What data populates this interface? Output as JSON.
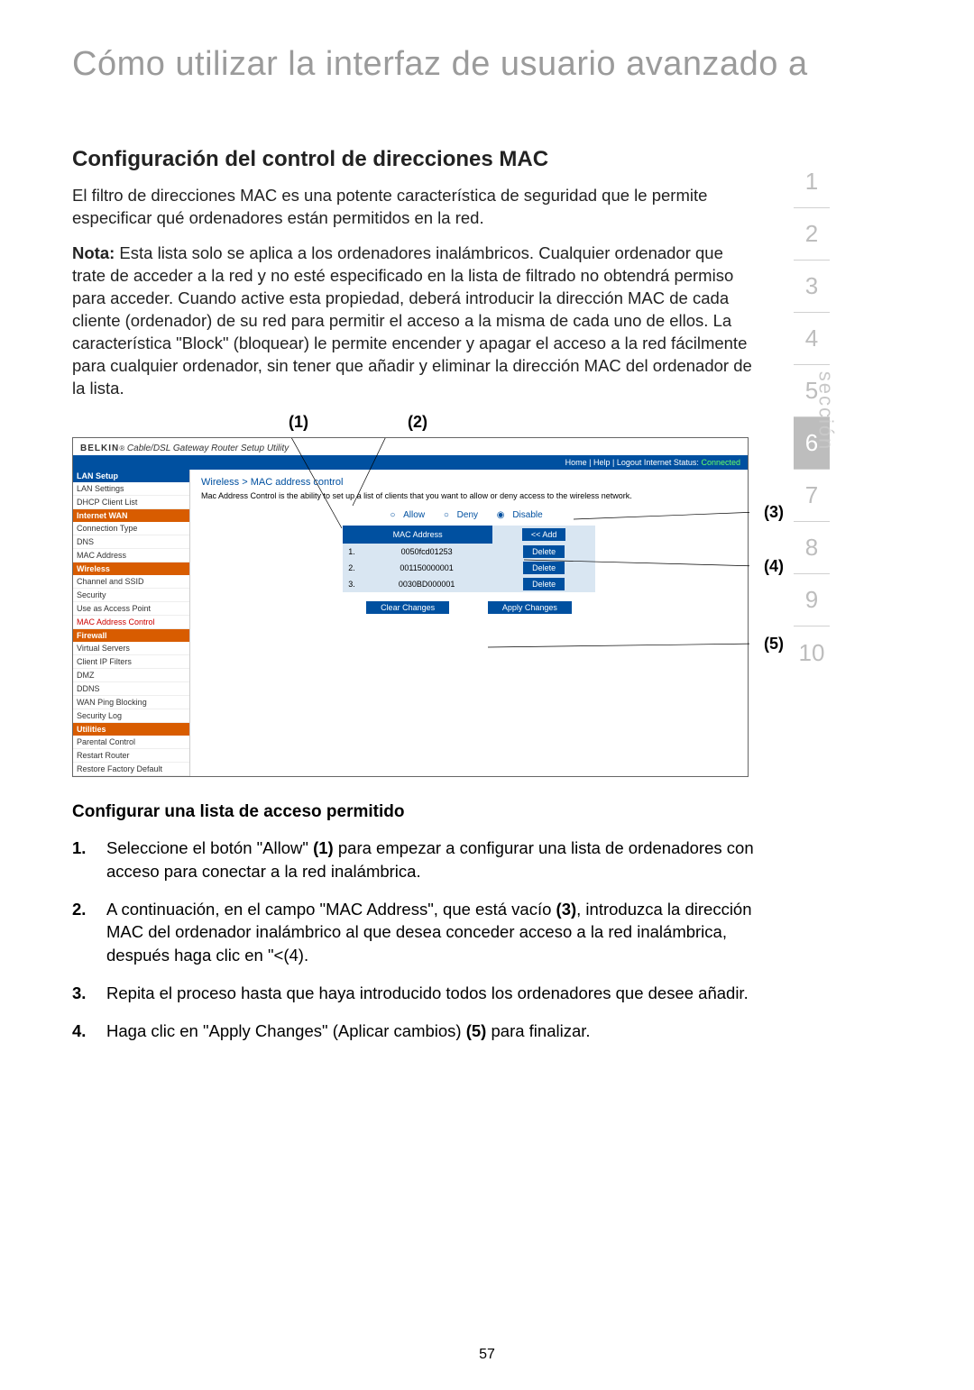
{
  "page_title": "Cómo utilizar la interfaz de usuario avanzado a",
  "h2": "Configuración del control de direcciones MAC",
  "p1": "El filtro de direcciones MAC es una potente característica de seguridad que le permite especificar qué ordenadores están permitidos en la red.",
  "p2_bold": "Nota:",
  "p2": " Esta lista solo se aplica a los ordenadores inalámbricos. Cualquier ordenador que trate de acceder a la red y no esté especificado en la lista de filtrado no obtendrá permiso para acceder. Cuando active esta propiedad, deberá introducir la dirección MAC de cada cliente (ordenador) de su red para permitir el acceso a la misma de cada uno de ellos. La característica \"Block\" (bloquear) le permite encender y apagar el acceso a la red fácilmente para cualquier ordenador, sin tener que añadir y eliminar la dirección MAC del ordenador de la lista.",
  "callout_top": [
    "(1)",
    "(2)"
  ],
  "callout_right": [
    "(3)",
    "(4)",
    "(5)"
  ],
  "router": {
    "brand": "BELKIN",
    "subtitle": "Cable/DSL Gateway Router Setup Utility",
    "topbar_links": "Home | Help | Logout   Internet Status:",
    "topbar_status": "Connected",
    "nav": [
      {
        "type": "head",
        "label": "LAN Setup"
      },
      {
        "type": "item",
        "label": "LAN Settings"
      },
      {
        "type": "item",
        "label": "DHCP Client List"
      },
      {
        "type": "head-orange",
        "label": "Internet WAN"
      },
      {
        "type": "item",
        "label": "Connection Type"
      },
      {
        "type": "item",
        "label": "DNS"
      },
      {
        "type": "item",
        "label": "MAC Address"
      },
      {
        "type": "head-orange",
        "label": "Wireless"
      },
      {
        "type": "item",
        "label": "Channel and SSID"
      },
      {
        "type": "item",
        "label": "Security"
      },
      {
        "type": "item",
        "label": "Use as Access Point"
      },
      {
        "type": "item-red",
        "label": "MAC Address Control"
      },
      {
        "type": "head-orange",
        "label": "Firewall"
      },
      {
        "type": "item",
        "label": "Virtual Servers"
      },
      {
        "type": "item",
        "label": "Client IP Filters"
      },
      {
        "type": "item",
        "label": "DMZ"
      },
      {
        "type": "item",
        "label": "DDNS"
      },
      {
        "type": "item",
        "label": "WAN Ping Blocking"
      },
      {
        "type": "item",
        "label": "Security Log"
      },
      {
        "type": "head-orange",
        "label": "Utilities"
      },
      {
        "type": "item",
        "label": "Parental Control"
      },
      {
        "type": "item",
        "label": "Restart Router"
      },
      {
        "type": "item",
        "label": "Restore Factory Default"
      }
    ],
    "breadcrumb": "Wireless > MAC address control",
    "desc": "Mac Address Control is the ability to set up a list of clients that you want to allow or deny access to the wireless network.",
    "radio_allow": "Allow",
    "radio_deny": "Deny",
    "radio_disable": "Disable",
    "table_header": "MAC Address",
    "add_btn": "<< Add",
    "rows": [
      {
        "idx": "1.",
        "mac": "0050fcd01253",
        "btn": "Delete"
      },
      {
        "idx": "2.",
        "mac": "001150000001",
        "btn": "Delete"
      },
      {
        "idx": "3.",
        "mac": "0030BD000001",
        "btn": "Delete"
      }
    ],
    "clear_btn": "Clear Changes",
    "apply_btn": "Apply Changes"
  },
  "h3": "Configurar una lista de acceso permitido",
  "steps": [
    "Seleccione el botón \"Allow\" (1) para empezar a configurar una lista de ordenadores con acceso para conectar a la red inalámbrica.",
    "A continuación, en el campo \"MAC Address\", que está vacío (3), introduzca la dirección MAC del ordenador inalámbrico al que desea conceder acceso a la red inalámbrica, después haga clic en \"<<Add\" (4).",
    "Repita el proceso hasta que haya introducido todos los ordenadores que desee añadir.",
    "Haga clic en \"Apply Changes\" (Aplicar cambios) (5) para finalizar."
  ],
  "section_label": "sección",
  "section_numbers": [
    "1",
    "2",
    "3",
    "4",
    "5",
    "6",
    "7",
    "8",
    "9",
    "10"
  ],
  "active_section": "6",
  "page_number": "57"
}
